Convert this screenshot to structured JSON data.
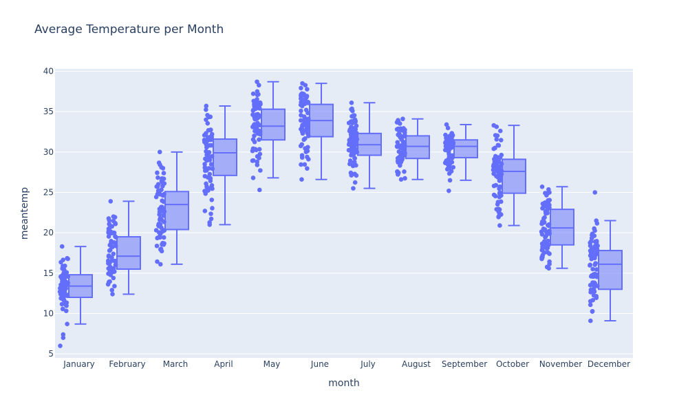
{
  "colors": {
    "marker": "#636efa",
    "box_fill": "rgba(99,110,250,0.5)",
    "plot_bg": "#e5ecf6",
    "grid": "#ffffff",
    "text": "#2a3f5f"
  },
  "chart_data": {
    "type": "box",
    "title": "Average Temperature per Month",
    "xlabel": "month",
    "ylabel": "meantemp",
    "ylim": [
      4.5,
      40.3
    ],
    "yticks": [
      5,
      10,
      15,
      20,
      25,
      30,
      35,
      40
    ],
    "grid": true,
    "legend": "none",
    "points": "all",
    "categories": [
      "January",
      "February",
      "March",
      "April",
      "May",
      "June",
      "July",
      "August",
      "September",
      "October",
      "November",
      "December"
    ],
    "boxes": [
      {
        "month": "January",
        "min": 8.7,
        "q1": 12.0,
        "median": 13.4,
        "q3": 14.8,
        "max": 18.3,
        "outliers": [
          6.0,
          7.0,
          7.4
        ]
      },
      {
        "month": "February",
        "min": 12.4,
        "q1": 15.5,
        "median": 17.1,
        "q3": 19.5,
        "max": 23.9,
        "outliers": []
      },
      {
        "month": "March",
        "min": 16.1,
        "q1": 20.4,
        "median": 23.5,
        "q3": 25.1,
        "max": 30.0,
        "outliers": []
      },
      {
        "month": "April",
        "min": 21.0,
        "q1": 27.1,
        "median": 29.9,
        "q3": 31.6,
        "max": 35.7,
        "outliers": []
      },
      {
        "month": "May",
        "min": 26.8,
        "q1": 31.5,
        "median": 33.2,
        "q3": 35.3,
        "max": 38.7,
        "outliers": [
          25.3
        ]
      },
      {
        "month": "June",
        "min": 26.6,
        "q1": 31.9,
        "median": 33.9,
        "q3": 35.9,
        "max": 38.5,
        "outliers": []
      },
      {
        "month": "July",
        "min": 25.5,
        "q1": 29.6,
        "median": 30.9,
        "q3": 32.3,
        "max": 36.1,
        "outliers": []
      },
      {
        "month": "August",
        "min": 26.6,
        "q1": 29.2,
        "median": 30.7,
        "q3": 32.0,
        "max": 34.1,
        "outliers": []
      },
      {
        "month": "September",
        "min": 26.5,
        "q1": 29.3,
        "median": 30.7,
        "q3": 31.5,
        "max": 33.4,
        "outliers": [
          25.2
        ]
      },
      {
        "month": "October",
        "min": 20.9,
        "q1": 24.9,
        "median": 27.6,
        "q3": 29.1,
        "max": 33.3,
        "outliers": []
      },
      {
        "month": "November",
        "min": 15.6,
        "q1": 18.5,
        "median": 20.6,
        "q3": 22.9,
        "max": 25.7,
        "outliers": []
      },
      {
        "month": "December",
        "min": 9.1,
        "q1": 13.0,
        "median": 16.1,
        "q3": 17.8,
        "max": 21.5,
        "outliers": [
          25.0
        ]
      }
    ]
  }
}
